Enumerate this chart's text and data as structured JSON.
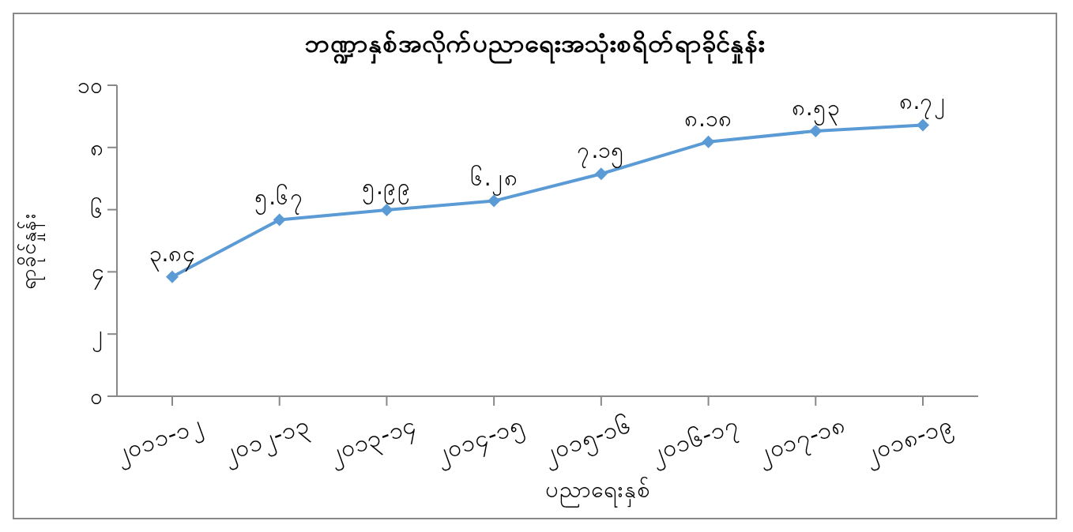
{
  "chart_data": {
    "type": "line",
    "title": "ဘဏ္ဍာနှစ်အလိုက်ပညာရေးအသုံးစရိတ်ရာခိုင်နှုန်း",
    "xlabel": "ပညာရေးနှစ်",
    "ylabel": "ရာခိုင်နှုန်း",
    "categories": [
      "၂၀၁၁-၁၂",
      "၂၀၁၂-၁၃",
      "၂၀၁၃-၁၄",
      "၂၀၁၄-၁၅",
      "၂၀၁၅-၁၆",
      "၂၀၁၆-၁၇",
      "၂၀၁၇-၁၈",
      "၂၀၁၈-၁၉"
    ],
    "series": [
      {
        "color": "#5b9bd5",
        "values": [
          3.84,
          5.67,
          5.99,
          6.28,
          7.15,
          8.18,
          8.53,
          8.72
        ],
        "value_labels": [
          "၃.၈၄",
          "၅.၆၇",
          "၅.၉၉",
          "၆.၂၈",
          "၇.၁၅",
          "၈.၁၈",
          "၈.၅၃",
          "၈.၇၂"
        ]
      }
    ],
    "ylim": [
      0,
      10
    ],
    "yticks": [
      {
        "value": 0,
        "label": "၀"
      },
      {
        "value": 2,
        "label": "၂"
      },
      {
        "value": 4,
        "label": "၄"
      },
      {
        "value": 6,
        "label": "၆"
      },
      {
        "value": 8,
        "label": "၈"
      },
      {
        "value": 10,
        "label": "၁၀"
      }
    ],
    "marker": "diamond",
    "grid": false,
    "legend": false
  }
}
